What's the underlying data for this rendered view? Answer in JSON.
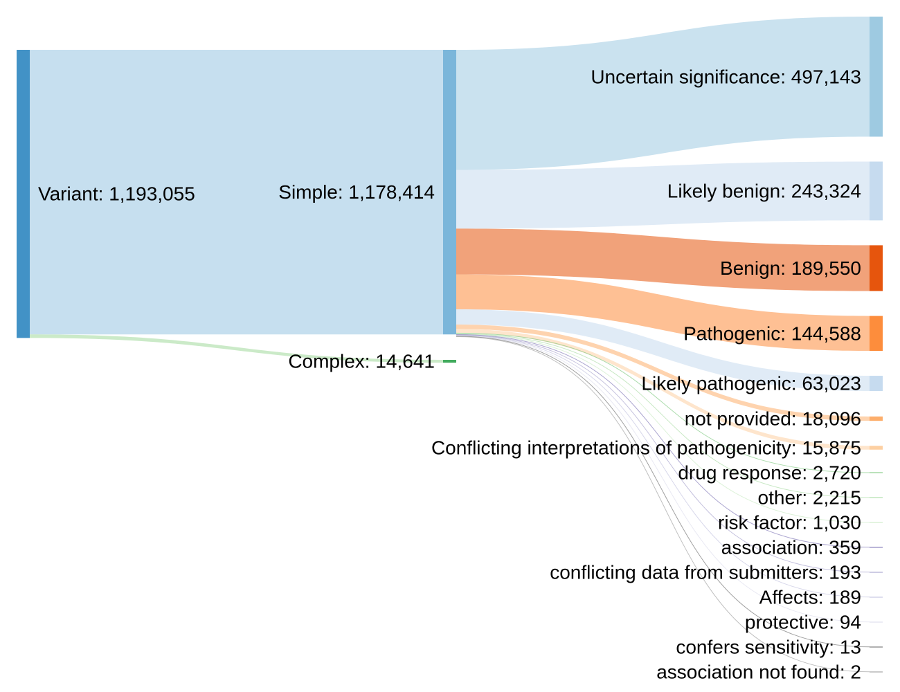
{
  "chart_data": {
    "type": "sankey",
    "nodes": [
      {
        "id": "variant",
        "name": "Variant",
        "value": 1193055,
        "label": "Variant: 1,193,055",
        "color": "#4292c6"
      },
      {
        "id": "simple",
        "name": "Simple",
        "value": 1178414,
        "label": "Simple: 1,178,414",
        "color": "#7bb6da"
      },
      {
        "id": "complex",
        "name": "Complex",
        "value": 14641,
        "label": "Complex: 14,641",
        "color": "#41ab5d"
      },
      {
        "id": "uncertain",
        "name": "Uncertain significance",
        "value": 497143,
        "label": "Uncertain significance: 497,143",
        "color": "#9ecae1"
      },
      {
        "id": "likely_benign",
        "name": "Likely benign",
        "value": 243324,
        "label": "Likely benign: 243,324",
        "color": "#c6dbef"
      },
      {
        "id": "benign",
        "name": "Benign",
        "value": 189550,
        "label": "Benign: 189,550",
        "color": "#e6550d"
      },
      {
        "id": "pathogenic",
        "name": "Pathogenic",
        "value": 144588,
        "label": "Pathogenic: 144,588",
        "color": "#fd8d3c"
      },
      {
        "id": "likely_pathogenic",
        "name": "Likely pathogenic",
        "value": 63023,
        "label": "Likely pathogenic: 63,023",
        "color": "#c6dbef"
      },
      {
        "id": "not_provided",
        "name": "not provided",
        "value": 18096,
        "label": "not provided: 18,096",
        "color": "#fdae6b"
      },
      {
        "id": "conflicting",
        "name": "Conflicting interpretations of pathogenicity",
        "value": 15875,
        "label": "Conflicting interpretations of pathogenicity: 15,875",
        "color": "#fdd0a2"
      },
      {
        "id": "drug_response",
        "name": "drug response",
        "value": 2720,
        "label": "drug response: 2,720",
        "color": "#74c476"
      },
      {
        "id": "other",
        "name": "other",
        "value": 2215,
        "label": "other: 2,215",
        "color": "#a1d99b"
      },
      {
        "id": "risk_factor",
        "name": "risk factor",
        "value": 1030,
        "label": "risk factor: 1,030",
        "color": "#c7e9c0"
      },
      {
        "id": "association",
        "name": "association",
        "value": 359,
        "label": "association: 359",
        "color": "#756bb1"
      },
      {
        "id": "conflicting_data",
        "name": "conflicting data from submitters",
        "value": 193,
        "label": "conflicting data from submitters: 193",
        "color": "#9e9ac8"
      },
      {
        "id": "affects",
        "name": "Affects",
        "value": 189,
        "label": "Affects: 189",
        "color": "#bcbddc"
      },
      {
        "id": "protective",
        "name": "protective",
        "value": 94,
        "label": "protective: 94",
        "color": "#dadaeb"
      },
      {
        "id": "confers_sensitivity",
        "name": "confers sensitivity",
        "value": 13,
        "label": "confers sensitivity: 13",
        "color": "#636363"
      },
      {
        "id": "association_not_found",
        "name": "association not found",
        "value": 2,
        "label": "association not found: 2",
        "color": "#969696"
      }
    ],
    "links": [
      {
        "source": "variant",
        "target": "simple",
        "value": 1178414
      },
      {
        "source": "variant",
        "target": "complex",
        "value": 14641
      },
      {
        "source": "simple",
        "target": "uncertain",
        "value": 497143
      },
      {
        "source": "simple",
        "target": "likely_benign",
        "value": 243324
      },
      {
        "source": "simple",
        "target": "benign",
        "value": 189550
      },
      {
        "source": "simple",
        "target": "pathogenic",
        "value": 144588
      },
      {
        "source": "simple",
        "target": "likely_pathogenic",
        "value": 63023
      },
      {
        "source": "simple",
        "target": "not_provided",
        "value": 18096
      },
      {
        "source": "simple",
        "target": "conflicting",
        "value": 15875
      },
      {
        "source": "simple",
        "target": "drug_response",
        "value": 2720
      },
      {
        "source": "simple",
        "target": "other",
        "value": 2215
      },
      {
        "source": "simple",
        "target": "risk_factor",
        "value": 1030
      },
      {
        "source": "simple",
        "target": "association",
        "value": 359
      },
      {
        "source": "simple",
        "target": "conflicting_data",
        "value": 193
      },
      {
        "source": "simple",
        "target": "affects",
        "value": 189
      },
      {
        "source": "simple",
        "target": "protective",
        "value": 94
      },
      {
        "source": "simple",
        "target": "confers_sensitivity",
        "value": 13
      },
      {
        "source": "simple",
        "target": "association_not_found",
        "value": 2
      }
    ]
  }
}
